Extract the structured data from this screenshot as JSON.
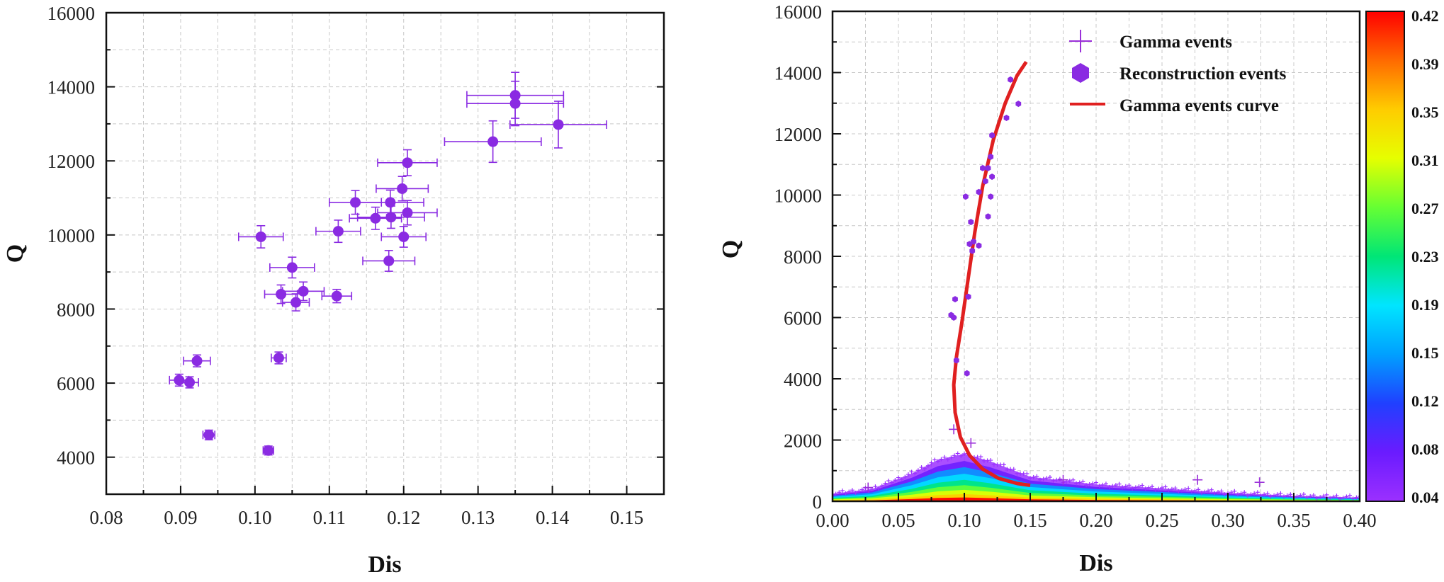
{
  "chart_data": [
    {
      "type": "scatter",
      "xlabel": "Dis",
      "ylabel": "Q",
      "xlim": [
        0.08,
        0.155
      ],
      "ylim": [
        3000,
        16000
      ],
      "xticks": [
        "0.08",
        "0.09",
        "0.10",
        "0.11",
        "0.12",
        "0.13",
        "0.14",
        "0.15"
      ],
      "yticks": [
        "4000",
        "6000",
        "8000",
        "10000",
        "12000",
        "14000",
        "16000"
      ],
      "grid": true,
      "color": "#8a2be2",
      "points": [
        {
          "x": 0.0898,
          "y": 6080,
          "xerr": 0.0013,
          "yerr": 160
        },
        {
          "x": 0.0912,
          "y": 6020,
          "xerr": 0.0012,
          "yerr": 150
        },
        {
          "x": 0.0922,
          "y": 6600,
          "xerr": 0.0018,
          "yerr": 160
        },
        {
          "x": 0.0938,
          "y": 4600,
          "xerr": 0.0008,
          "yerr": 130
        },
        {
          "x": 0.1008,
          "y": 9950,
          "xerr": 0.003,
          "yerr": 300
        },
        {
          "x": 0.1018,
          "y": 4180,
          "xerr": 0.0007,
          "yerr": 120
        },
        {
          "x": 0.1032,
          "y": 6680,
          "xerr": 0.001,
          "yerr": 160
        },
        {
          "x": 0.1035,
          "y": 8400,
          "xerr": 0.0022,
          "yerr": 250
        },
        {
          "x": 0.105,
          "y": 9120,
          "xerr": 0.003,
          "yerr": 280
        },
        {
          "x": 0.1055,
          "y": 8180,
          "xerr": 0.0018,
          "yerr": 230
        },
        {
          "x": 0.1065,
          "y": 8480,
          "xerr": 0.0028,
          "yerr": 250
        },
        {
          "x": 0.111,
          "y": 8350,
          "xerr": 0.002,
          "yerr": 180
        },
        {
          "x": 0.1112,
          "y": 10100,
          "xerr": 0.003,
          "yerr": 300
        },
        {
          "x": 0.1135,
          "y": 10880,
          "xerr": 0.0035,
          "yerr": 320
        },
        {
          "x": 0.1162,
          "y": 10450,
          "xerr": 0.0035,
          "yerr": 300
        },
        {
          "x": 0.118,
          "y": 9300,
          "xerr": 0.0035,
          "yerr": 280
        },
        {
          "x": 0.1182,
          "y": 10880,
          "xerr": 0.0045,
          "yerr": 330
        },
        {
          "x": 0.1183,
          "y": 10480,
          "xerr": 0.0045,
          "yerr": 300
        },
        {
          "x": 0.1198,
          "y": 11250,
          "xerr": 0.0035,
          "yerr": 330
        },
        {
          "x": 0.12,
          "y": 9950,
          "xerr": 0.003,
          "yerr": 280
        },
        {
          "x": 0.1205,
          "y": 11950,
          "xerr": 0.004,
          "yerr": 350
        },
        {
          "x": 0.1205,
          "y": 10600,
          "xerr": 0.004,
          "yerr": 330
        },
        {
          "x": 0.132,
          "y": 12520,
          "xerr": 0.0065,
          "yerr": 560
        },
        {
          "x": 0.135,
          "y": 13770,
          "xerr": 0.0065,
          "yerr": 620
        },
        {
          "x": 0.135,
          "y": 13550,
          "xerr": 0.0065,
          "yerr": 600
        },
        {
          "x": 0.1408,
          "y": 12980,
          "xerr": 0.0065,
          "yerr": 630
        }
      ]
    },
    {
      "type": "scatter",
      "xlabel": "Dis",
      "ylabel": "Q",
      "xlim": [
        0.0,
        0.4
      ],
      "ylim": [
        0,
        16000
      ],
      "xticks": [
        "0.00",
        "0.05",
        "0.10",
        "0.15",
        "0.20",
        "0.25",
        "0.30",
        "0.35",
        "0.40"
      ],
      "yticks": [
        "0",
        "2000",
        "4000",
        "6000",
        "8000",
        "10000",
        "12000",
        "14000",
        "16000"
      ],
      "grid": true,
      "legend_position": "top-center",
      "legend": [
        {
          "label": "Gamma events",
          "marker": "plus",
          "color": "#9b30d9"
        },
        {
          "label": "Reconstruction events",
          "marker": "hexagon",
          "color": "#8a2be2"
        },
        {
          "label": "Gamma events curve",
          "marker": "line",
          "color": "#e02020"
        }
      ],
      "density_band": {
        "description_series": "Gamma events",
        "profile": [
          {
            "x": 0.0,
            "q": 250
          },
          {
            "x": 0.03,
            "q": 400
          },
          {
            "x": 0.06,
            "q": 900
          },
          {
            "x": 0.08,
            "q": 1350
          },
          {
            "x": 0.1,
            "q": 1550
          },
          {
            "x": 0.12,
            "q": 1300
          },
          {
            "x": 0.15,
            "q": 800
          },
          {
            "x": 0.2,
            "q": 550
          },
          {
            "x": 0.25,
            "q": 420
          },
          {
            "x": 0.3,
            "q": 280
          },
          {
            "x": 0.35,
            "q": 180
          },
          {
            "x": 0.4,
            "q": 120
          }
        ],
        "outliers": [
          {
            "x": 0.027,
            "q": 450
          },
          {
            "x": 0.092,
            "q": 2350
          },
          {
            "x": 0.105,
            "q": 1900
          },
          {
            "x": 0.175,
            "q": 700
          },
          {
            "x": 0.277,
            "q": 700
          },
          {
            "x": 0.324,
            "q": 620
          }
        ]
      },
      "curve": {
        "name": "Gamma events curve",
        "points": [
          {
            "x": 0.147,
            "y": 14350
          },
          {
            "x": 0.14,
            "y": 13900
          },
          {
            "x": 0.131,
            "y": 13000
          },
          {
            "x": 0.122,
            "y": 11800
          },
          {
            "x": 0.114,
            "y": 10300
          },
          {
            "x": 0.108,
            "y": 8800
          },
          {
            "x": 0.103,
            "y": 7300
          },
          {
            "x": 0.098,
            "y": 5800
          },
          {
            "x": 0.094,
            "y": 4700
          },
          {
            "x": 0.092,
            "y": 3800
          },
          {
            "x": 0.093,
            "y": 2900
          },
          {
            "x": 0.097,
            "y": 2100
          },
          {
            "x": 0.104,
            "y": 1500
          },
          {
            "x": 0.114,
            "y": 1050
          },
          {
            "x": 0.126,
            "y": 750
          },
          {
            "x": 0.14,
            "y": 580
          },
          {
            "x": 0.15,
            "y": 520
          }
        ]
      },
      "reconstruction_points": [
        {
          "x": 0.09,
          "y": 6080
        },
        {
          "x": 0.092,
          "y": 6000
        },
        {
          "x": 0.093,
          "y": 6600
        },
        {
          "x": 0.094,
          "y": 4600
        },
        {
          "x": 0.101,
          "y": 9950
        },
        {
          "x": 0.102,
          "y": 4180
        },
        {
          "x": 0.103,
          "y": 6680
        },
        {
          "x": 0.104,
          "y": 8400
        },
        {
          "x": 0.105,
          "y": 9120
        },
        {
          "x": 0.106,
          "y": 8180
        },
        {
          "x": 0.107,
          "y": 8480
        },
        {
          "x": 0.111,
          "y": 8350
        },
        {
          "x": 0.111,
          "y": 10100
        },
        {
          "x": 0.114,
          "y": 10880
        },
        {
          "x": 0.116,
          "y": 10450
        },
        {
          "x": 0.118,
          "y": 9300
        },
        {
          "x": 0.118,
          "y": 10880
        },
        {
          "x": 0.12,
          "y": 11250
        },
        {
          "x": 0.12,
          "y": 9950
        },
        {
          "x": 0.121,
          "y": 11950
        },
        {
          "x": 0.121,
          "y": 10600
        },
        {
          "x": 0.132,
          "y": 12520
        },
        {
          "x": 0.135,
          "y": 13770
        },
        {
          "x": 0.141,
          "y": 12980
        }
      ],
      "colorbar": {
        "labels": [
          "0.42",
          "0.39",
          "0.35",
          "0.31",
          "0.27",
          "0.23",
          "0.19",
          "0.15",
          "0.12",
          "0.08",
          "0.04"
        ],
        "colors_top_to_bottom": [
          "#ff0000",
          "#ff6a00",
          "#ffcc00",
          "#e6ff00",
          "#66ff33",
          "#00e676",
          "#00e5ff",
          "#00a0ff",
          "#2040ff",
          "#6a1bff",
          "#9b30ff"
        ]
      }
    }
  ]
}
